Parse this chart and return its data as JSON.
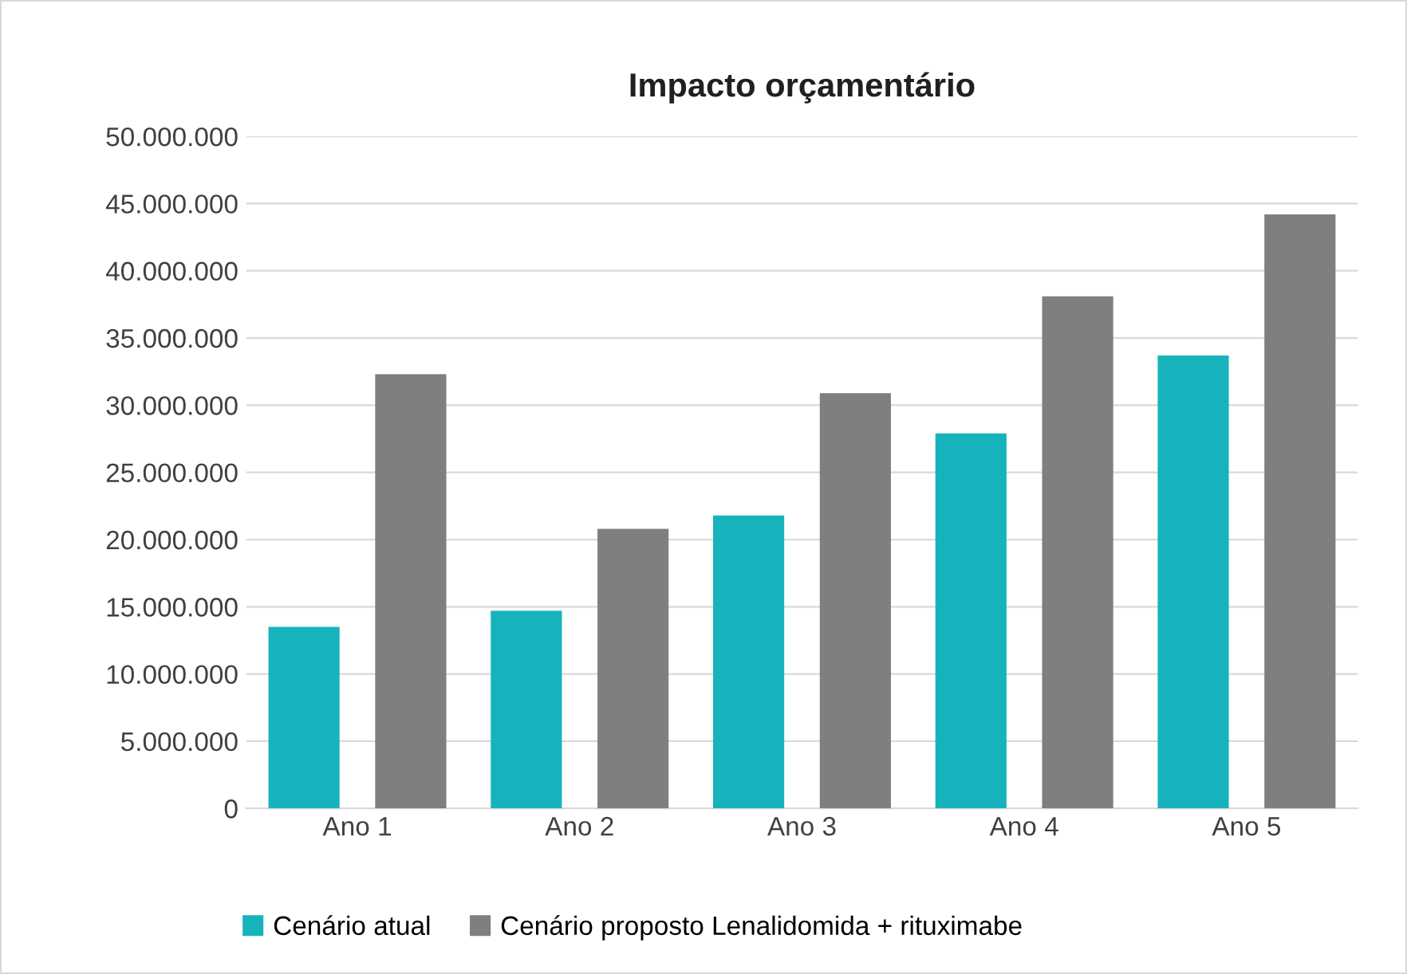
{
  "chart_data": {
    "type": "bar",
    "title": "Impacto orçamentário",
    "categories": [
      "Ano 1",
      "Ano 2",
      "Ano 3",
      "Ano 4",
      "Ano 5"
    ],
    "series": [
      {
        "name": "Cenário atual",
        "color": "#17b3bd",
        "values": [
          13500000,
          14700000,
          21800000,
          27900000,
          33700000
        ]
      },
      {
        "name": "Cenário proposto Lenalidomida + rituximabe",
        "color": "#7f7f7f",
        "values": [
          32300000,
          20800000,
          30900000,
          38100000,
          44200000
        ]
      }
    ],
    "ylim": [
      0,
      50000000
    ],
    "yticks": [
      0,
      {
        "value": 5000000,
        "label": "5.000.000"
      },
      {
        "value": 10000000,
        "label": "10.000.000"
      },
      {
        "value": 15000000,
        "label": "15.000.000"
      },
      {
        "value": 20000000,
        "label": "20.000.000"
      },
      {
        "value": 25000000,
        "label": "25.000.000"
      },
      {
        "value": 30000000,
        "label": "30.000.000"
      },
      {
        "value": 35000000,
        "label": "35.000.000"
      },
      {
        "value": 40000000,
        "label": "40.000.000"
      },
      {
        "value": 45000000,
        "label": "45.000.000"
      },
      {
        "value": 50000000,
        "label": "50.000.000"
      }
    ],
    "grid": "y",
    "legend": "bottom"
  }
}
